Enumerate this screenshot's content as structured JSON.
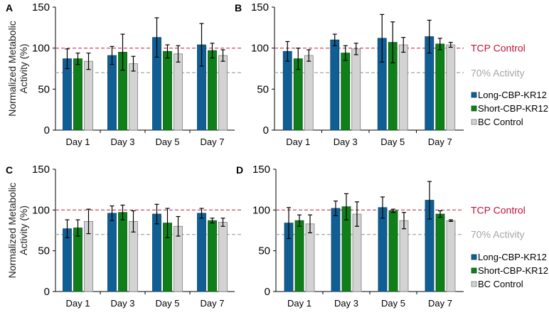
{
  "colors": {
    "long": "#0f5f95",
    "short": "#0f7f1a",
    "bc": "#d3d3d3",
    "tcp_line": "#c0394b",
    "activity_line": "#a6a6a6",
    "tcp_text": "#c0143c",
    "activity_text": "#a6a6a6"
  },
  "reference_lines": {
    "tcp": {
      "label": "TCP Control",
      "value": 100
    },
    "activity": {
      "label": "70% Activity",
      "value": 70
    }
  },
  "chart_data": [
    {
      "type": "bar",
      "panel_label": "A",
      "ylabel": "Normalized Metabolic Activity (%)",
      "ylim": [
        0,
        150
      ],
      "yticks": [
        0,
        50,
        100,
        150
      ],
      "categories": [
        "Day 1",
        "Day 3",
        "Day 5",
        "Day 7"
      ],
      "series": [
        {
          "name": "Long-CBP-KR12",
          "values": [
            87,
            91,
            113,
            104
          ],
          "errors": [
            12,
            11,
            24,
            26
          ]
        },
        {
          "name": "Short-CBP-KR12",
          "values": [
            87,
            95,
            96,
            97
          ],
          "errors": [
            7,
            22,
            8,
            9
          ]
        },
        {
          "name": "BC Control",
          "values": [
            84,
            81,
            93,
            91
          ],
          "errors": [
            10,
            9,
            10,
            7
          ]
        }
      ]
    },
    {
      "type": "bar",
      "panel_label": "B",
      "ylim": [
        0,
        150
      ],
      "yticks": [
        0,
        50,
        100,
        150
      ],
      "categories": [
        "Day 1",
        "Day 3",
        "Day 5",
        "Day 7"
      ],
      "legend": "right",
      "series": [
        {
          "name": "Long-CBP-KR12",
          "values": [
            96,
            110,
            112,
            114
          ],
          "errors": [
            12,
            7,
            29,
            20
          ]
        },
        {
          "name": "Short-CBP-KR12",
          "values": [
            87,
            94,
            107,
            105
          ],
          "errors": [
            13,
            9,
            25,
            7
          ]
        },
        {
          "name": "BC Control",
          "values": [
            91,
            99,
            104,
            104
          ],
          "errors": [
            7,
            7,
            9,
            3
          ]
        }
      ]
    },
    {
      "type": "bar",
      "panel_label": "C",
      "ylabel": "Normalized Metabolic Activity (%)",
      "ylim": [
        0,
        150
      ],
      "yticks": [
        0,
        50,
        100,
        150
      ],
      "categories": [
        "Day 1",
        "Day 3",
        "Day 5",
        "Day 7"
      ],
      "series": [
        {
          "name": "Long-CBP-KR12",
          "values": [
            77,
            96,
            95,
            96
          ],
          "errors": [
            11,
            9,
            12,
            6
          ]
        },
        {
          "name": "Short-CBP-KR12",
          "values": [
            78,
            97,
            84,
            87
          ],
          "errors": [
            10,
            9,
            18,
            3
          ]
        },
        {
          "name": "BC Control",
          "values": [
            86,
            86,
            80,
            85
          ],
          "errors": [
            15,
            13,
            12,
            5
          ]
        }
      ]
    },
    {
      "type": "bar",
      "panel_label": "D",
      "ylim": [
        0,
        150
      ],
      "yticks": [
        0,
        50,
        100,
        150
      ],
      "categories": [
        "Day 1",
        "Day 3",
        "Day 5",
        "Day 7"
      ],
      "legend": "right",
      "series": [
        {
          "name": "Long-CBP-KR12",
          "values": [
            84,
            102,
            103,
            112
          ],
          "errors": [
            19,
            9,
            13,
            23
          ]
        },
        {
          "name": "Short-CBP-KR12",
          "values": [
            87,
            104,
            99,
            95
          ],
          "errors": [
            7,
            16,
            2,
            4
          ]
        },
        {
          "name": "BC Control",
          "values": [
            83,
            95,
            87,
            87
          ],
          "errors": [
            11,
            15,
            10,
            1
          ]
        }
      ]
    }
  ]
}
